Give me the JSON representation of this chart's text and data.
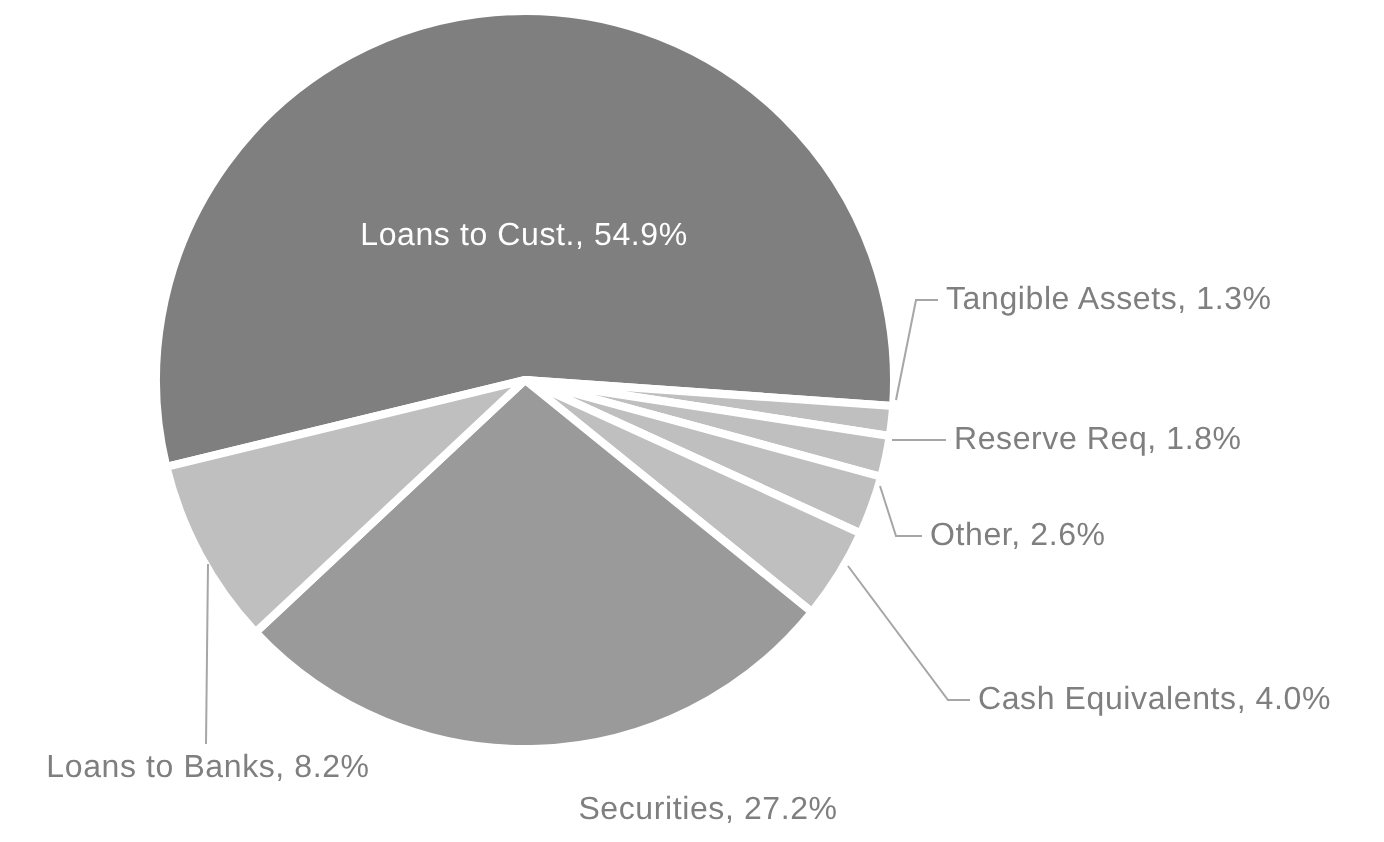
{
  "chart_data": {
    "type": "pie",
    "categories": [
      "Loans to Cust.",
      "Tangible Assets",
      "Reserve Req",
      "Other",
      "Cash Equivalents",
      "Securities",
      "Loans to Banks"
    ],
    "values": [
      54.9,
      1.3,
      1.8,
      2.6,
      4.0,
      27.2,
      8.2
    ],
    "value_labels": [
      "54.9%",
      "1.3%",
      "1.8%",
      "2.6%",
      "4.0%",
      "27.2%",
      "8.2%"
    ],
    "colors": [
      "#7f7f7f",
      "#bfbfbf",
      "#bfbfbf",
      "#bfbfbf",
      "#bfbfbf",
      "#9a9a9a",
      "#bfbfbf"
    ],
    "legend": false
  }
}
